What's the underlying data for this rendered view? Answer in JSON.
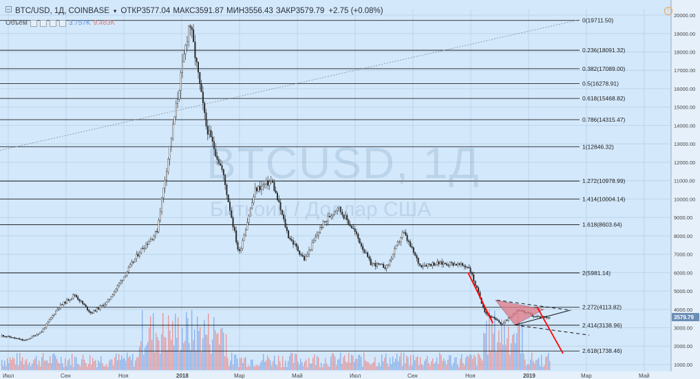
{
  "header": {
    "symbol": "BTC/USD, 1Д, COINBASE",
    "ohlc": [
      "ОТКР3577.04",
      "МАКС3591.87",
      "МИН3556.43",
      "ЗАКР3579.79"
    ],
    "change": "+2.75 (+0.08%)"
  },
  "volume": {
    "label": "Объём",
    "value_up": "3.757K",
    "value_down": "9.483K"
  },
  "watermark": {
    "title": "BTCUSD, 1Д",
    "subtitle": "Биткоин / Доллар США"
  },
  "price_label": "3579.79",
  "colors": {
    "background": "#d3e8fb",
    "up_candle": "#ffffff",
    "down_candle": "#2f2f2f",
    "volume_up": "#7ea8e8",
    "volume_down": "#ea8b8b",
    "fib_line": "#000000",
    "trend_red": "#ff0000",
    "triangle_fill": "#e07a86"
  },
  "chart_data": {
    "type": "candlestick",
    "symbol": "BTCUSD",
    "interval": "1Д",
    "x_ticks": [
      "Июл",
      "Сен",
      "Ноя",
      "2018",
      "Мар",
      "Май",
      "Июл",
      "Сен",
      "Ноя",
      "2019",
      "Мар",
      "Май"
    ],
    "y_ticks": [
      1000,
      2000,
      3000,
      4000,
      5000,
      6000,
      7000,
      8000,
      9000,
      10000,
      11000,
      12000,
      13000,
      14000,
      15000,
      16000,
      17000,
      18000,
      19000,
      20000
    ],
    "ylim": [
      700,
      20300
    ],
    "price_path": [
      [
        "Июл",
        2500
      ],
      [
        "Июл+",
        2300
      ],
      [
        "Авг",
        2800
      ],
      [
        "Авг+",
        4100
      ],
      [
        "Сен",
        4800
      ],
      [
        "Сен+",
        3800
      ],
      [
        "Окт",
        4400
      ],
      [
        "Окт+",
        5800
      ],
      [
        "Ноя",
        7200
      ],
      [
        "Ноя+",
        8200
      ],
      [
        "Дек",
        14000
      ],
      [
        "Дек+",
        19700
      ],
      [
        "Янв",
        14000
      ],
      [
        "Янв+",
        11500
      ],
      [
        "Фев",
        7000
      ],
      [
        "Фев+",
        10500
      ],
      [
        "Мар",
        11000
      ],
      [
        "Мар+",
        8000
      ],
      [
        "Апр",
        6700
      ],
      [
        "Апр+",
        8500
      ],
      [
        "Май",
        9600
      ],
      [
        "Май+",
        8300
      ],
      [
        "Июн",
        6500
      ],
      [
        "Июл",
        6300
      ],
      [
        "Июл+",
        8200
      ],
      [
        "Авг",
        6400
      ],
      [
        "Сен",
        6500
      ],
      [
        "Окт",
        6500
      ],
      [
        "Ноя",
        6300
      ],
      [
        "Ноя+",
        3800
      ],
      [
        "Дек",
        3200
      ],
      [
        "Дек+",
        4000
      ],
      [
        "2019",
        3600
      ],
      [
        "2019+",
        3580
      ]
    ],
    "fib_levels": [
      {
        "label": "0(19711.50)",
        "value": 19711.5
      },
      {
        "label": "0.236(18091.32)",
        "value": 18091.32
      },
      {
        "label": "0.382(17089.00)",
        "value": 17089.0
      },
      {
        "label": "0.5(16278.91)",
        "value": 16278.91
      },
      {
        "label": "0.618(15468.82)",
        "value": 15468.82
      },
      {
        "label": "0.786(14315.47)",
        "value": 14315.47
      },
      {
        "label": "1(12846.32)",
        "value": 12846.32
      },
      {
        "label": "1.272(10978.99)",
        "value": 10978.99
      },
      {
        "label": "1.414(10004.14)",
        "value": 10004.14
      },
      {
        "label": "1.618(8603.64)",
        "value": 8603.64
      },
      {
        "label": "2(5981.14)",
        "value": 5981.14
      },
      {
        "label": "2.272(4113.82)",
        "value": 4113.82
      },
      {
        "label": "2.414(3138.96)",
        "value": 3138.96
      },
      {
        "label": "2.618(1738.46)",
        "value": 1738.46
      }
    ],
    "last_price": 3579.79,
    "grid": true
  }
}
